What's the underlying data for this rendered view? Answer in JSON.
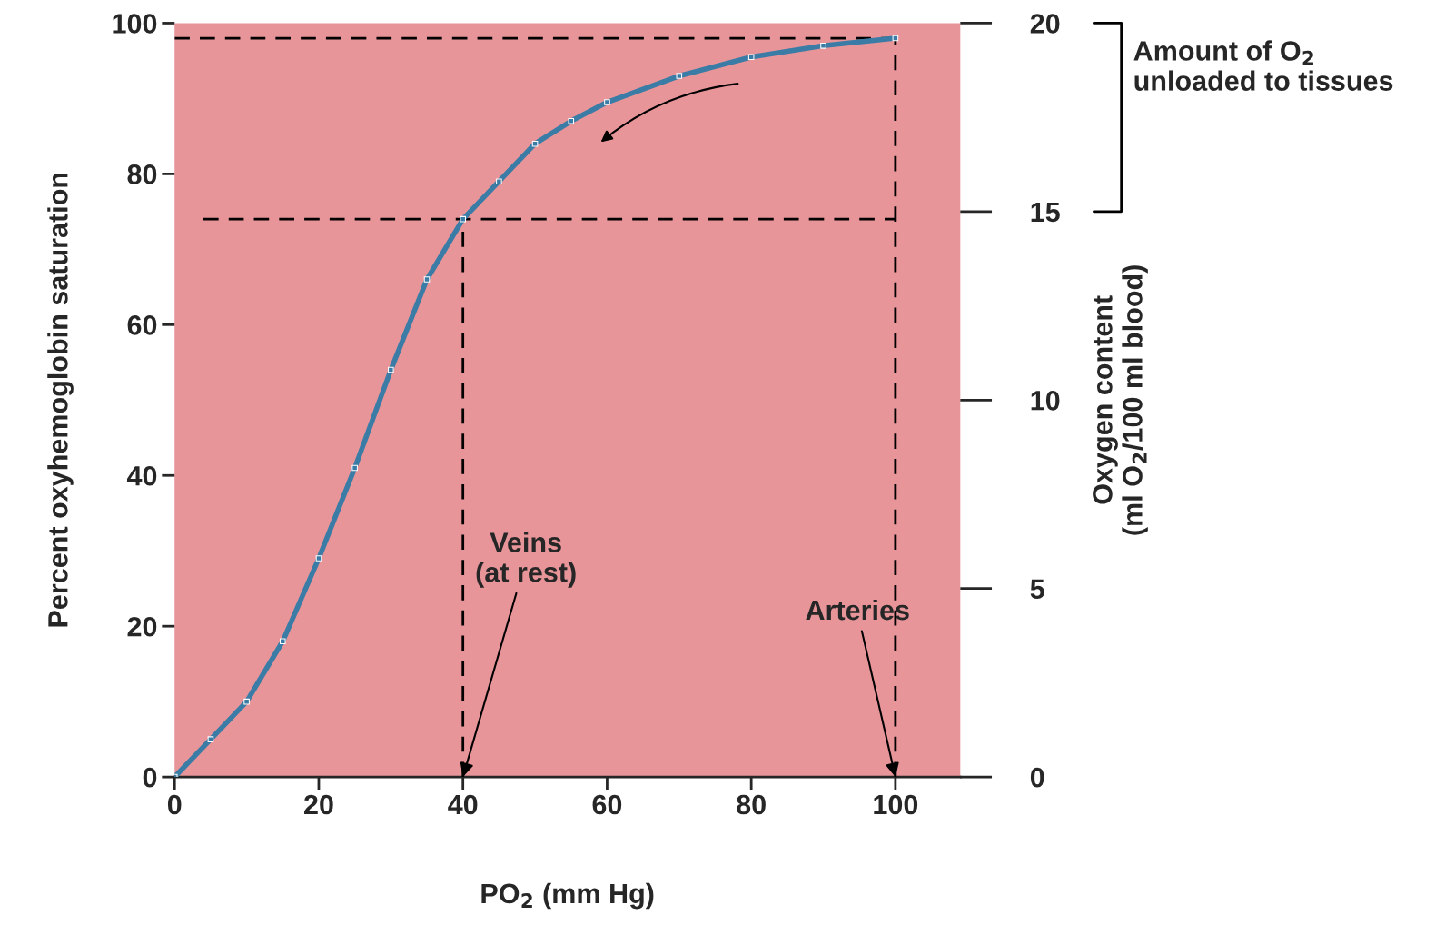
{
  "chart_data": {
    "type": "line",
    "xlabel": "PO$_{2}$ (mm Hg)",
    "ylabel": "Percent oxyhemoglobin saturation",
    "y2label": "Oxygen content\n(ml O$_{2}$/100 ml blood)",
    "xlim": [
      0,
      109
    ],
    "xticks": [
      0,
      20,
      40,
      60,
      80,
      100
    ],
    "ylim": [
      0,
      100
    ],
    "yticks": [
      0,
      20,
      40,
      60,
      80,
      100
    ],
    "y2lim": [
      0,
      20
    ],
    "y2ticks": [
      0,
      5,
      10,
      15,
      20
    ],
    "grid": false,
    "series": [
      {
        "color": "#3a7ca5",
        "marker": "square",
        "line_style": "solid",
        "x": [
          0,
          5,
          10,
          15,
          20,
          25,
          30,
          35,
          40,
          45,
          50,
          55,
          60,
          70,
          80,
          90,
          100
        ],
        "values": [
          0,
          5,
          10,
          18,
          29,
          41,
          54,
          66,
          74,
          79,
          84,
          87,
          89.5,
          93,
          95.5,
          97,
          98
        ]
      },
      {
        "color": "#000000",
        "marker": "none",
        "line_style": "dashed",
        "x": [
          0,
          100
        ],
        "values": [
          98,
          98
        ]
      },
      {
        "color": "#000000",
        "marker": "none",
        "line_style": "dashed",
        "x": [
          4,
          100
        ],
        "values": [
          74,
          74
        ]
      },
      {
        "color": "#000000",
        "marker": "none",
        "line_style": "dashed",
        "x": [
          40,
          40
        ],
        "values": [
          0,
          74
        ]
      },
      {
        "color": "#000000",
        "marker": "none",
        "line_style": "dashed",
        "x": [
          100,
          100
        ],
        "values": [
          0,
          98
        ]
      }
    ],
    "annotations": [
      "Amount of O$_{2}$\nunloaded to tissues",
      {
        "text": "Veins\n(at rest)",
        "x": 40,
        "y": 0
      },
      {
        "text": "Arteries",
        "x": 100,
        "y": 0
      }
    ]
  }
}
